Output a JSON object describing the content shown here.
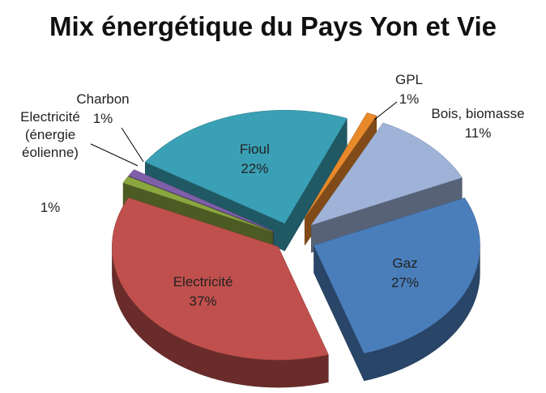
{
  "chart_data": {
    "type": "pie3d",
    "title": "Mix énergétique du Pays Yon et Vie",
    "categories": [
      "GPL",
      "Bois, biomasse",
      "Gaz",
      "Electricité",
      "Electricité (énergie éolienne)",
      "Charbon",
      "Fioul"
    ],
    "values": [
      1,
      11,
      27,
      37,
      1,
      1,
      22
    ],
    "value_labels": [
      "1%",
      "11%",
      "27%",
      "37%",
      "1%",
      "1%",
      "22%"
    ],
    "colors": [
      "#e8892b",
      "#9fb3d9",
      "#4a7ebb",
      "#c0504d",
      "#8aa63f",
      "#7f5fa8",
      "#3aa0b5"
    ]
  }
}
